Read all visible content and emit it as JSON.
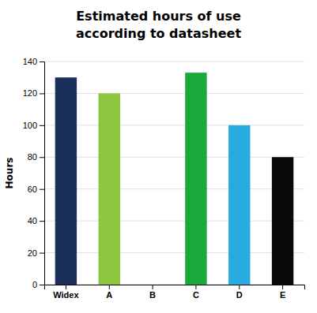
{
  "chart_data": {
    "type": "bar",
    "title": "Estimated hours of use",
    "subtitle": "according to datasheet",
    "ylabel": "Hours",
    "categories": [
      "Widex",
      "A",
      "B",
      "C",
      "D",
      "E"
    ],
    "values": [
      130,
      120,
      0,
      133,
      100,
      80
    ],
    "colors": [
      "#1a2f5a",
      "#8dc63f",
      "#8dc63f",
      "#1aaa3c",
      "#29abe2",
      "#0a0a0a"
    ],
    "ylim": [
      0,
      140
    ],
    "yticks": [
      0,
      20,
      40,
      60,
      80,
      100,
      120,
      140
    ],
    "grid": true
  }
}
